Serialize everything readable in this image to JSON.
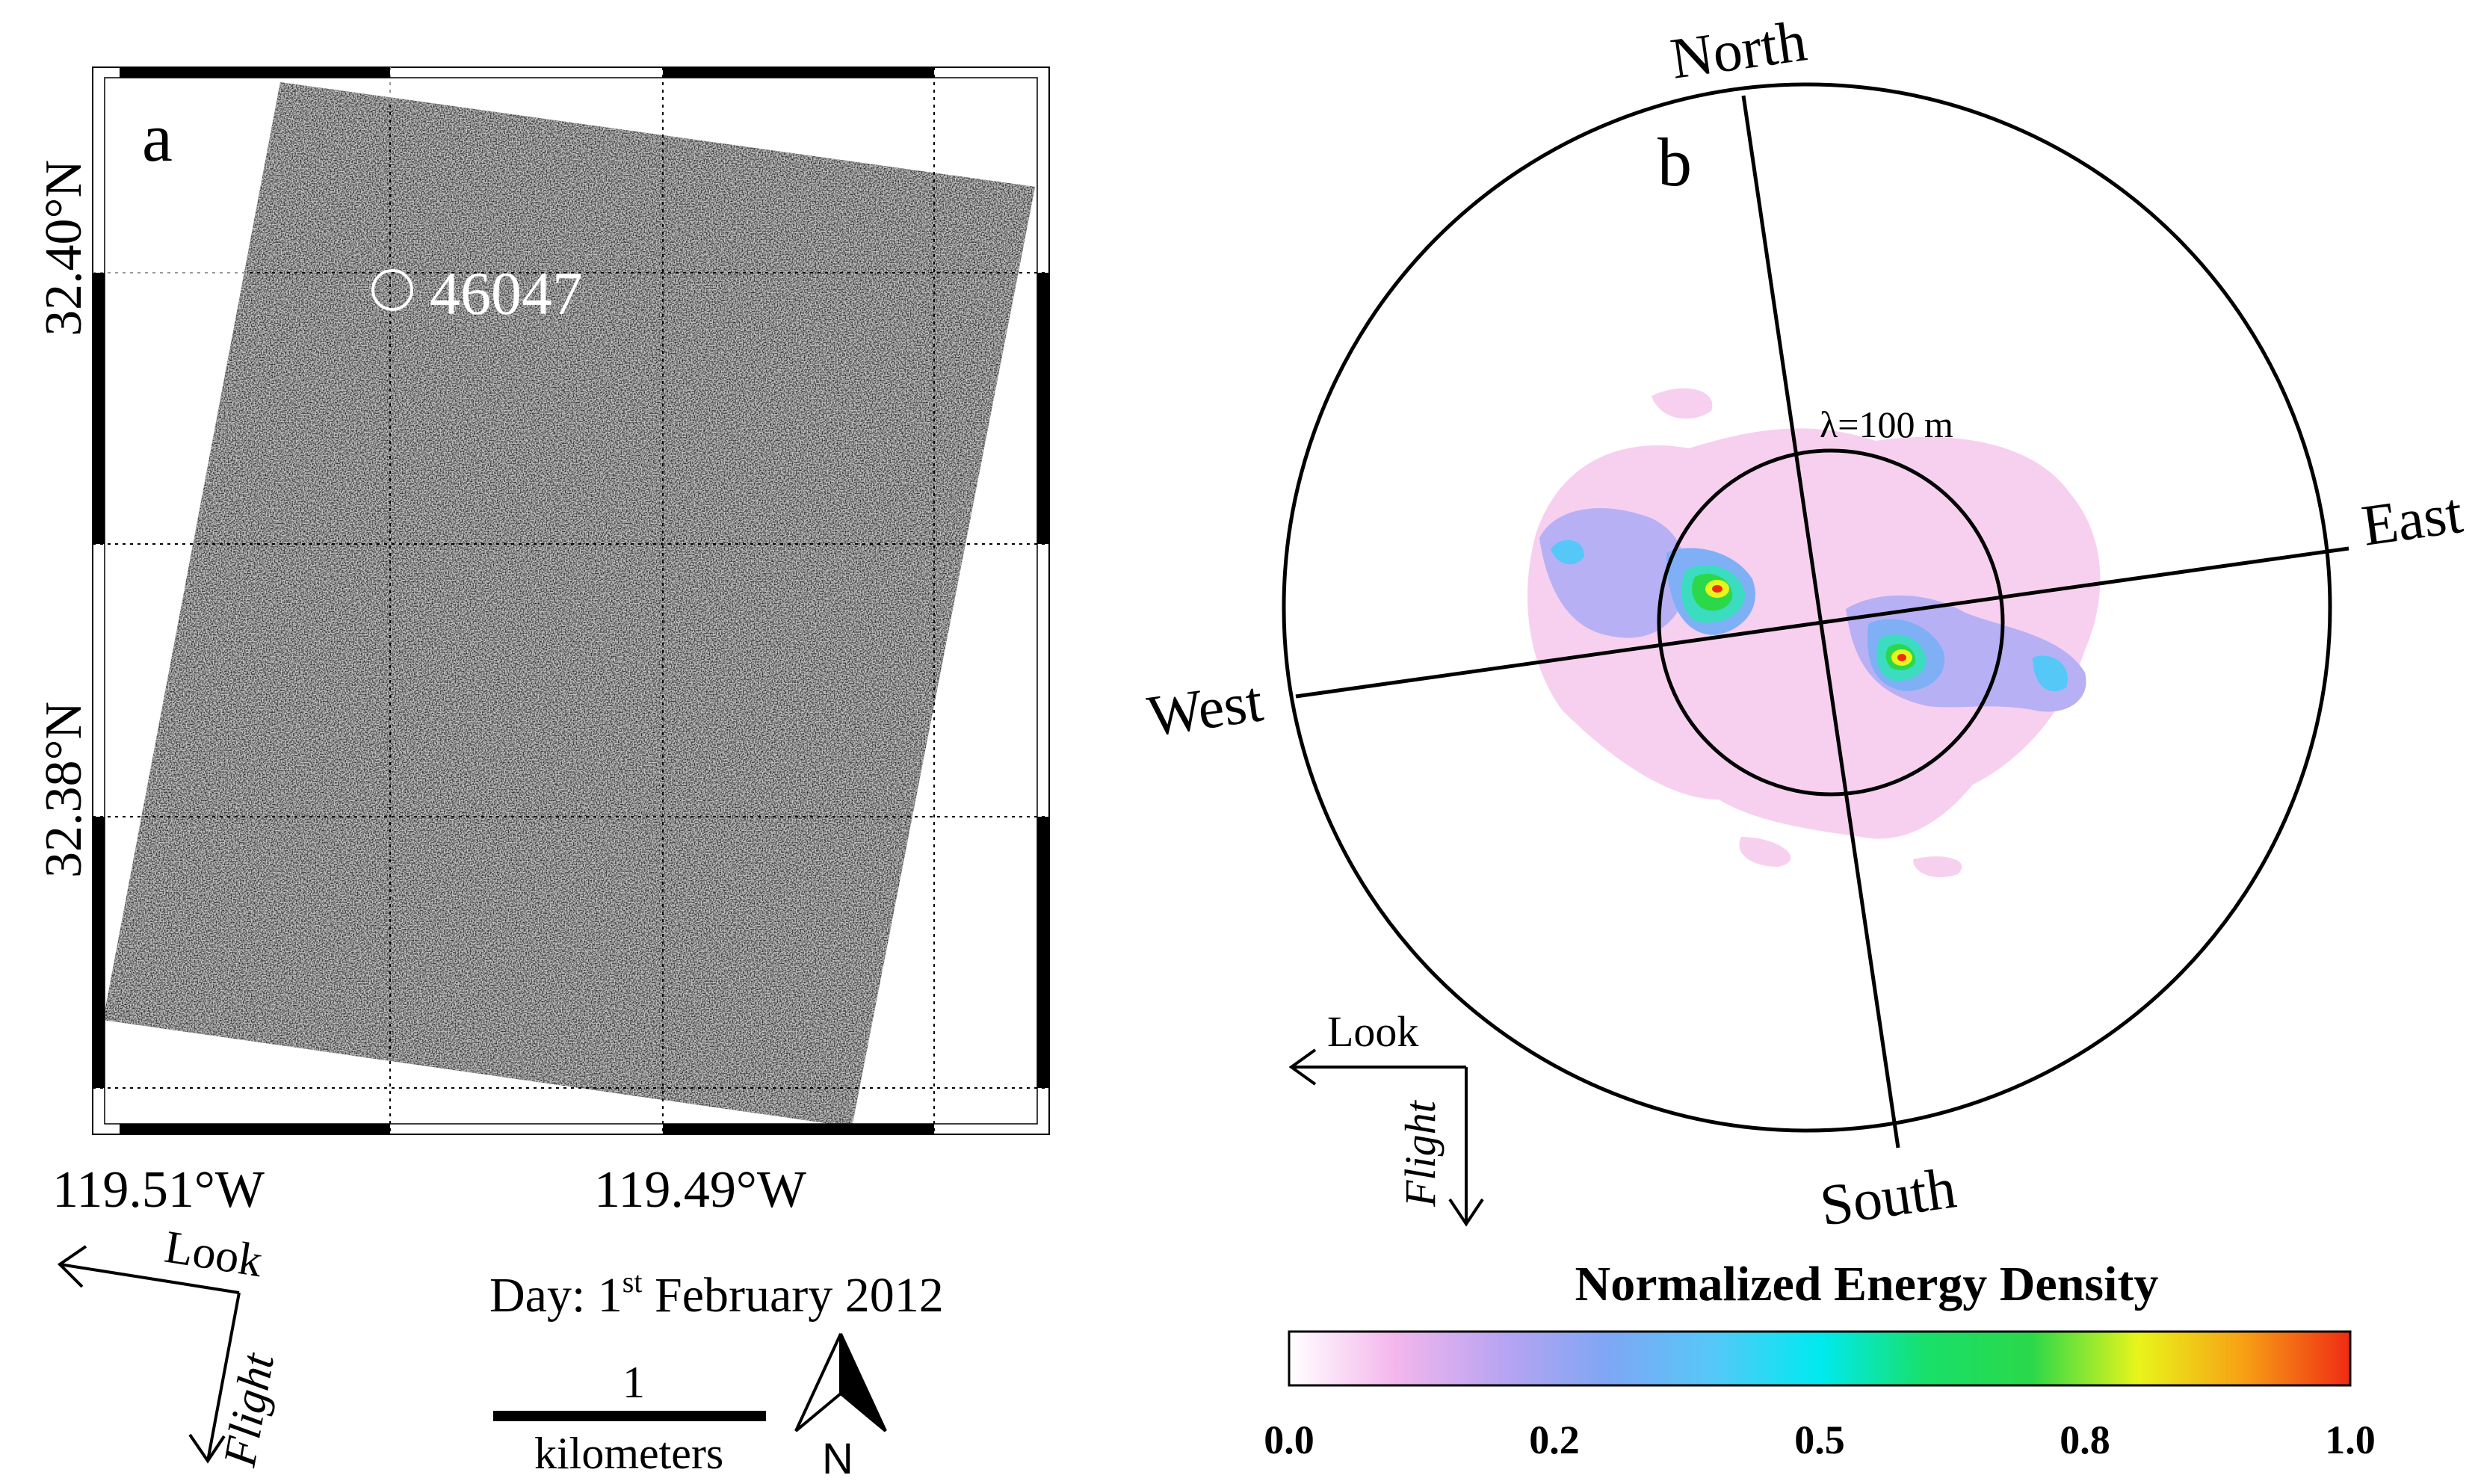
{
  "panel_a": {
    "label": "a",
    "lat_labels": [
      "32.40°N",
      "32.38°N"
    ],
    "lon_labels": [
      "119.51°W",
      "119.49°W"
    ],
    "buoy_id": "46047",
    "look_label": "Look",
    "flight_label": "Flight",
    "date_prefix": "Day:  1",
    "date_sup": "st",
    "date_rest": "  February  2012",
    "scale_value": "1",
    "scale_unit": "kilometers",
    "north_label": "N"
  },
  "panel_b": {
    "label": "b",
    "directions": {
      "north": "North",
      "east": "East",
      "south": "South",
      "west": "West"
    },
    "wavelength_label": "λ=100 m",
    "look_label": "Look",
    "flight_label": "Flight",
    "colorbar": {
      "title": "Normalized Energy Density",
      "ticks": [
        "0.0",
        "0.2",
        "0.5",
        "0.8",
        "1.0"
      ],
      "colors": [
        "#ffffff",
        "#f3b6ec",
        "#b9a4f2",
        "#7fa6f4",
        "#55c8f8",
        "#00eaf0",
        "#18e06a",
        "#2bd84a",
        "#e8f51a",
        "#f7a014",
        "#ef2b14"
      ]
    }
  }
}
